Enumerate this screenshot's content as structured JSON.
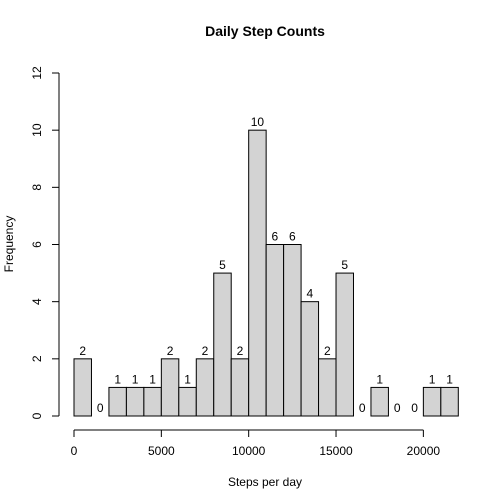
{
  "chart_data": {
    "type": "bar",
    "title": "Daily Step Counts",
    "xlabel": "Steps per day",
    "ylabel": "Frequency",
    "bin_width": 1000,
    "bins_start": [
      0,
      1000,
      2000,
      3000,
      4000,
      5000,
      6000,
      7000,
      8000,
      9000,
      10000,
      11000,
      12000,
      13000,
      14000,
      15000,
      16000,
      17000,
      18000,
      19000,
      20000,
      21000
    ],
    "values": [
      2,
      0,
      1,
      1,
      1,
      2,
      1,
      2,
      5,
      2,
      10,
      6,
      6,
      4,
      2,
      5,
      0,
      1,
      0,
      0,
      1,
      1
    ],
    "value_labels": [
      "2",
      "0",
      "1",
      "1",
      "1",
      "2",
      "1",
      "2",
      "5",
      "2",
      "10",
      "6",
      "6",
      "4",
      "2",
      "5",
      "0",
      "1",
      "0",
      "0",
      "1",
      "1"
    ],
    "xlim": [
      0,
      22000
    ],
    "ylim": [
      0,
      12
    ],
    "x_ticks": [
      0,
      5000,
      10000,
      15000,
      20000
    ],
    "x_tick_labels": [
      "0",
      "5000",
      "10000",
      "15000",
      "20000"
    ],
    "y_ticks": [
      0,
      2,
      4,
      6,
      8,
      10,
      12
    ],
    "y_tick_labels": [
      "0",
      "2",
      "4",
      "6",
      "8",
      "10",
      "12"
    ],
    "colors": {
      "bar_fill": "#d3d3d3",
      "bar_stroke": "#000000"
    }
  }
}
